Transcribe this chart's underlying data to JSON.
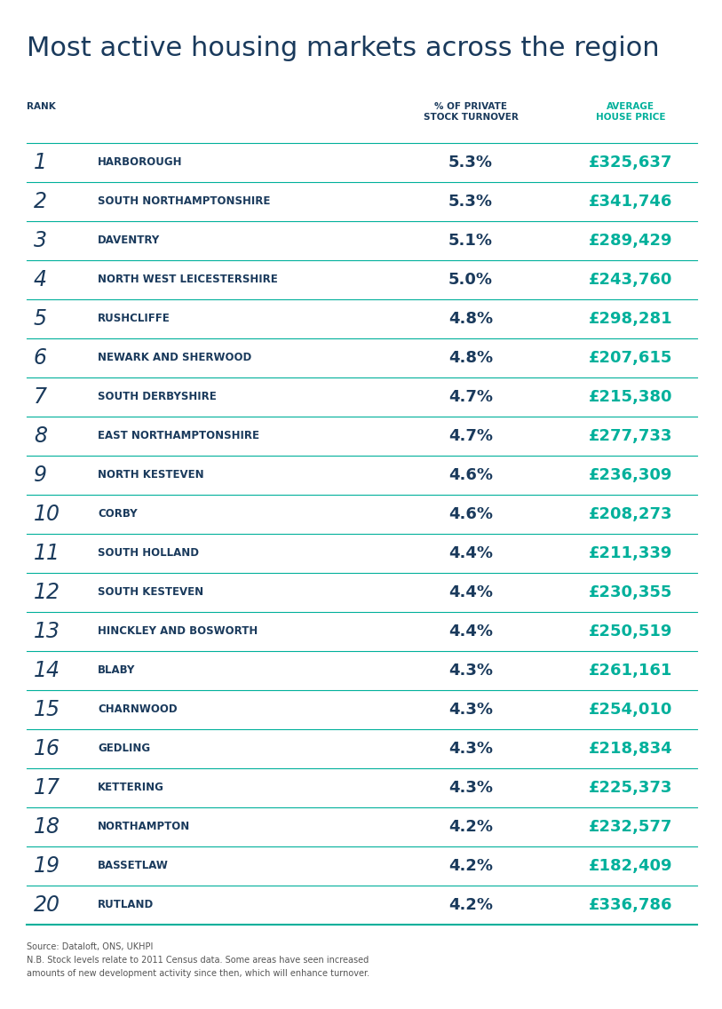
{
  "title": "Most active housing markets across the region",
  "title_color": "#1a3a5c",
  "col1_header": "RANK",
  "col2_header": "% OF PRIVATE\nSTOCK TURNOVER",
  "col3_header": "AVERAGE\nHOUSE PRICE",
  "col2_header_color": "#1a3a5c",
  "col3_header_color": "#00b09b",
  "rank_color": "#1a3a5c",
  "area_color": "#1a3a5c",
  "turnover_color": "#1a3a5c",
  "price_color": "#00b09b",
  "line_color": "#00b09b",
  "background_color": "#ffffff",
  "rows": [
    {
      "rank": "1",
      "area": "HARBOROUGH",
      "turnover": "5.3%",
      "price": "£325,637"
    },
    {
      "rank": "2",
      "area": "SOUTH NORTHAMPTONSHIRE",
      "turnover": "5.3%",
      "price": "£341,746"
    },
    {
      "rank": "3",
      "area": "DAVENTRY",
      "turnover": "5.1%",
      "price": "£289,429"
    },
    {
      "rank": "4",
      "area": "NORTH WEST LEICESTERSHIRE",
      "turnover": "5.0%",
      "price": "£243,760"
    },
    {
      "rank": "5",
      "area": "RUSHCLIFFE",
      "turnover": "4.8%",
      "price": "£298,281"
    },
    {
      "rank": "6",
      "area": "NEWARK AND SHERWOOD",
      "turnover": "4.8%",
      "price": "£207,615"
    },
    {
      "rank": "7",
      "area": "SOUTH DERBYSHIRE",
      "turnover": "4.7%",
      "price": "£215,380"
    },
    {
      "rank": "8",
      "area": "EAST NORTHAMPTONSHIRE",
      "turnover": "4.7%",
      "price": "£277,733"
    },
    {
      "rank": "9",
      "area": "NORTH KESTEVEN",
      "turnover": "4.6%",
      "price": "£236,309"
    },
    {
      "rank": "10",
      "area": "CORBY",
      "turnover": "4.6%",
      "price": "£208,273"
    },
    {
      "rank": "11",
      "area": "SOUTH HOLLAND",
      "turnover": "4.4%",
      "price": "£211,339"
    },
    {
      "rank": "12",
      "area": "SOUTH KESTEVEN",
      "turnover": "4.4%",
      "price": "£230,355"
    },
    {
      "rank": "13",
      "area": "HINCKLEY AND BOSWORTH",
      "turnover": "4.4%",
      "price": "£250,519"
    },
    {
      "rank": "14",
      "area": "BLABY",
      "turnover": "4.3%",
      "price": "£261,161"
    },
    {
      "rank": "15",
      "area": "CHARNWOOD",
      "turnover": "4.3%",
      "price": "£254,010"
    },
    {
      "rank": "16",
      "area": "GEDLING",
      "turnover": "4.3%",
      "price": "£218,834"
    },
    {
      "rank": "17",
      "area": "KETTERING",
      "turnover": "4.3%",
      "price": "£225,373"
    },
    {
      "rank": "18",
      "area": "NORTHAMPTON",
      "turnover": "4.2%",
      "price": "£232,577"
    },
    {
      "rank": "19",
      "area": "BASSETLAW",
      "turnover": "4.2%",
      "price": "£182,409"
    },
    {
      "rank": "20",
      "area": "RUTLAND",
      "turnover": "4.2%",
      "price": "£336,786"
    }
  ],
  "source_text": "Source: Dataloft, ONS, UKHPI\nN.B. Stock levels relate to 2011 Census data. Some areas have seen increased\namounts of new development activity since then, which will enhance turnover."
}
